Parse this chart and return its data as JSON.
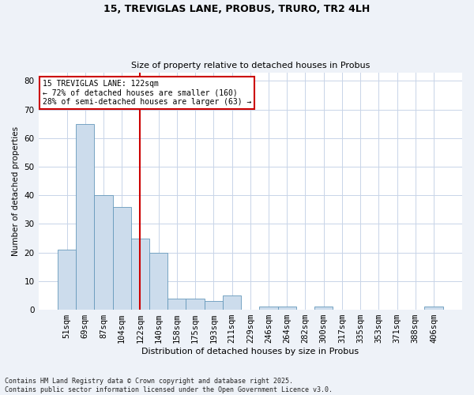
{
  "title1": "15, TREVIGLAS LANE, PROBUS, TRURO, TR2 4LH",
  "title2": "Size of property relative to detached houses in Probus",
  "xlabel": "Distribution of detached houses by size in Probus",
  "ylabel": "Number of detached properties",
  "categories": [
    "51sqm",
    "69sqm",
    "87sqm",
    "104sqm",
    "122sqm",
    "140sqm",
    "158sqm",
    "175sqm",
    "193sqm",
    "211sqm",
    "229sqm",
    "246sqm",
    "264sqm",
    "282sqm",
    "300sqm",
    "317sqm",
    "335sqm",
    "353sqm",
    "371sqm",
    "388sqm",
    "406sqm"
  ],
  "values": [
    21,
    65,
    40,
    36,
    25,
    20,
    4,
    4,
    3,
    5,
    0,
    1,
    1,
    0,
    1,
    0,
    0,
    0,
    0,
    0,
    1
  ],
  "bar_color": "#ccdcec",
  "bar_edge_color": "#6699bb",
  "highlight_index": 4,
  "highlight_color": "#cc0000",
  "annotation_text": "15 TREVIGLAS LANE: 122sqm\n← 72% of detached houses are smaller (160)\n28% of semi-detached houses are larger (63) →",
  "annotation_box_color": "white",
  "annotation_box_edge_color": "#cc0000",
  "ylim": [
    0,
    83
  ],
  "yticks": [
    0,
    10,
    20,
    30,
    40,
    50,
    60,
    70,
    80
  ],
  "footer": "Contains HM Land Registry data © Crown copyright and database right 2025.\nContains public sector information licensed under the Open Government Licence v3.0.",
  "background_color": "#eef2f8",
  "plot_background_color": "#ffffff",
  "grid_color": "#c8d4e8"
}
